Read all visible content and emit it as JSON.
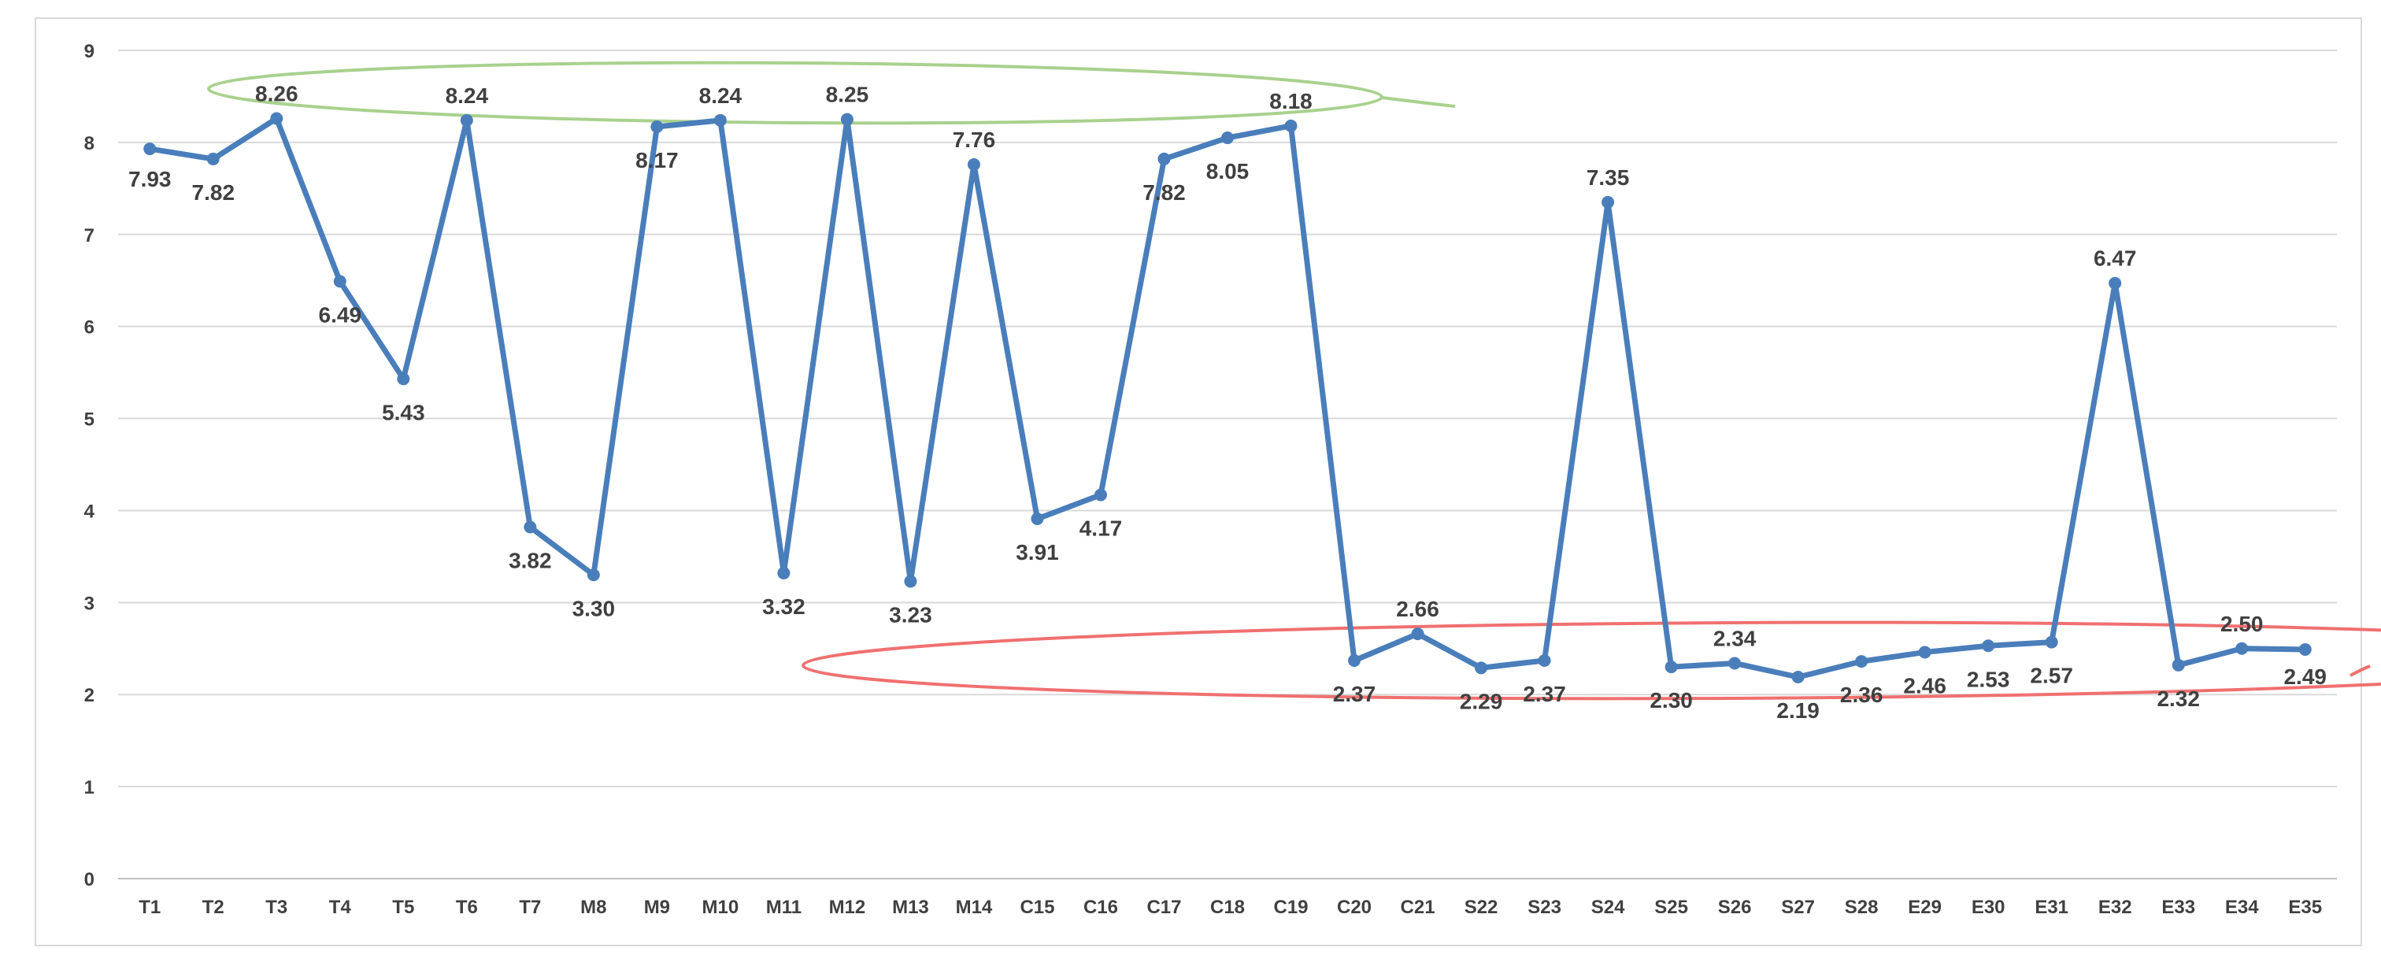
{
  "chart_data": {
    "type": "line",
    "title": "",
    "xlabel": "",
    "ylabel": "",
    "ylim": [
      0,
      9
    ],
    "yticks": [
      "0",
      "1",
      "2",
      "3",
      "4",
      "5",
      "6",
      "7",
      "8",
      "9"
    ],
    "grid": true,
    "legend": "none",
    "categories": [
      "T1",
      "T2",
      "T3",
      "T4",
      "T5",
      "T6",
      "T7",
      "M8",
      "M9",
      "M10",
      "M11",
      "M12",
      "M13",
      "M14",
      "C15",
      "C16",
      "C17",
      "C18",
      "C19",
      "C20",
      "C21",
      "S22",
      "S23",
      "S24",
      "S25",
      "S26",
      "S27",
      "S28",
      "E29",
      "E30",
      "E31",
      "E32",
      "E33",
      "E34",
      "E35"
    ],
    "series": [
      {
        "values": [
          7.93,
          7.82,
          8.26,
          6.49,
          5.43,
          8.24,
          3.82,
          3.3,
          8.17,
          8.24,
          3.32,
          8.25,
          3.23,
          7.76,
          3.91,
          4.17,
          7.82,
          8.05,
          8.18,
          2.37,
          2.66,
          2.29,
          2.37,
          7.35,
          2.3,
          2.34,
          2.19,
          2.36,
          2.46,
          2.53,
          2.57,
          6.47,
          2.32,
          2.5,
          2.49
        ],
        "labels": [
          "7.93",
          "7.82",
          "8.26",
          "6.49",
          "5.43",
          "8.24",
          "3.82",
          "3.30",
          "8.17",
          "8.24",
          "3.32",
          "8.25",
          "3.23",
          "7.76",
          "3.91",
          "4.17",
          "7.82",
          "8.05",
          "8.18",
          "2.37",
          "2.66",
          "2.29",
          "2.37",
          "7.35",
          "2.30",
          "2.34",
          "2.19",
          "2.36",
          "2.46",
          "2.53",
          "2.57",
          "6.47",
          "2.32",
          "2.50",
          "2.49"
        ]
      }
    ],
    "colors": {
      "line": "#4a7ebb",
      "grid": "#d9d9d9",
      "axis": "#bfbfbf",
      "text": "#404040",
      "high_group_ellipse": "#a9d18e",
      "low_group_ellipse": "#f07070"
    }
  }
}
